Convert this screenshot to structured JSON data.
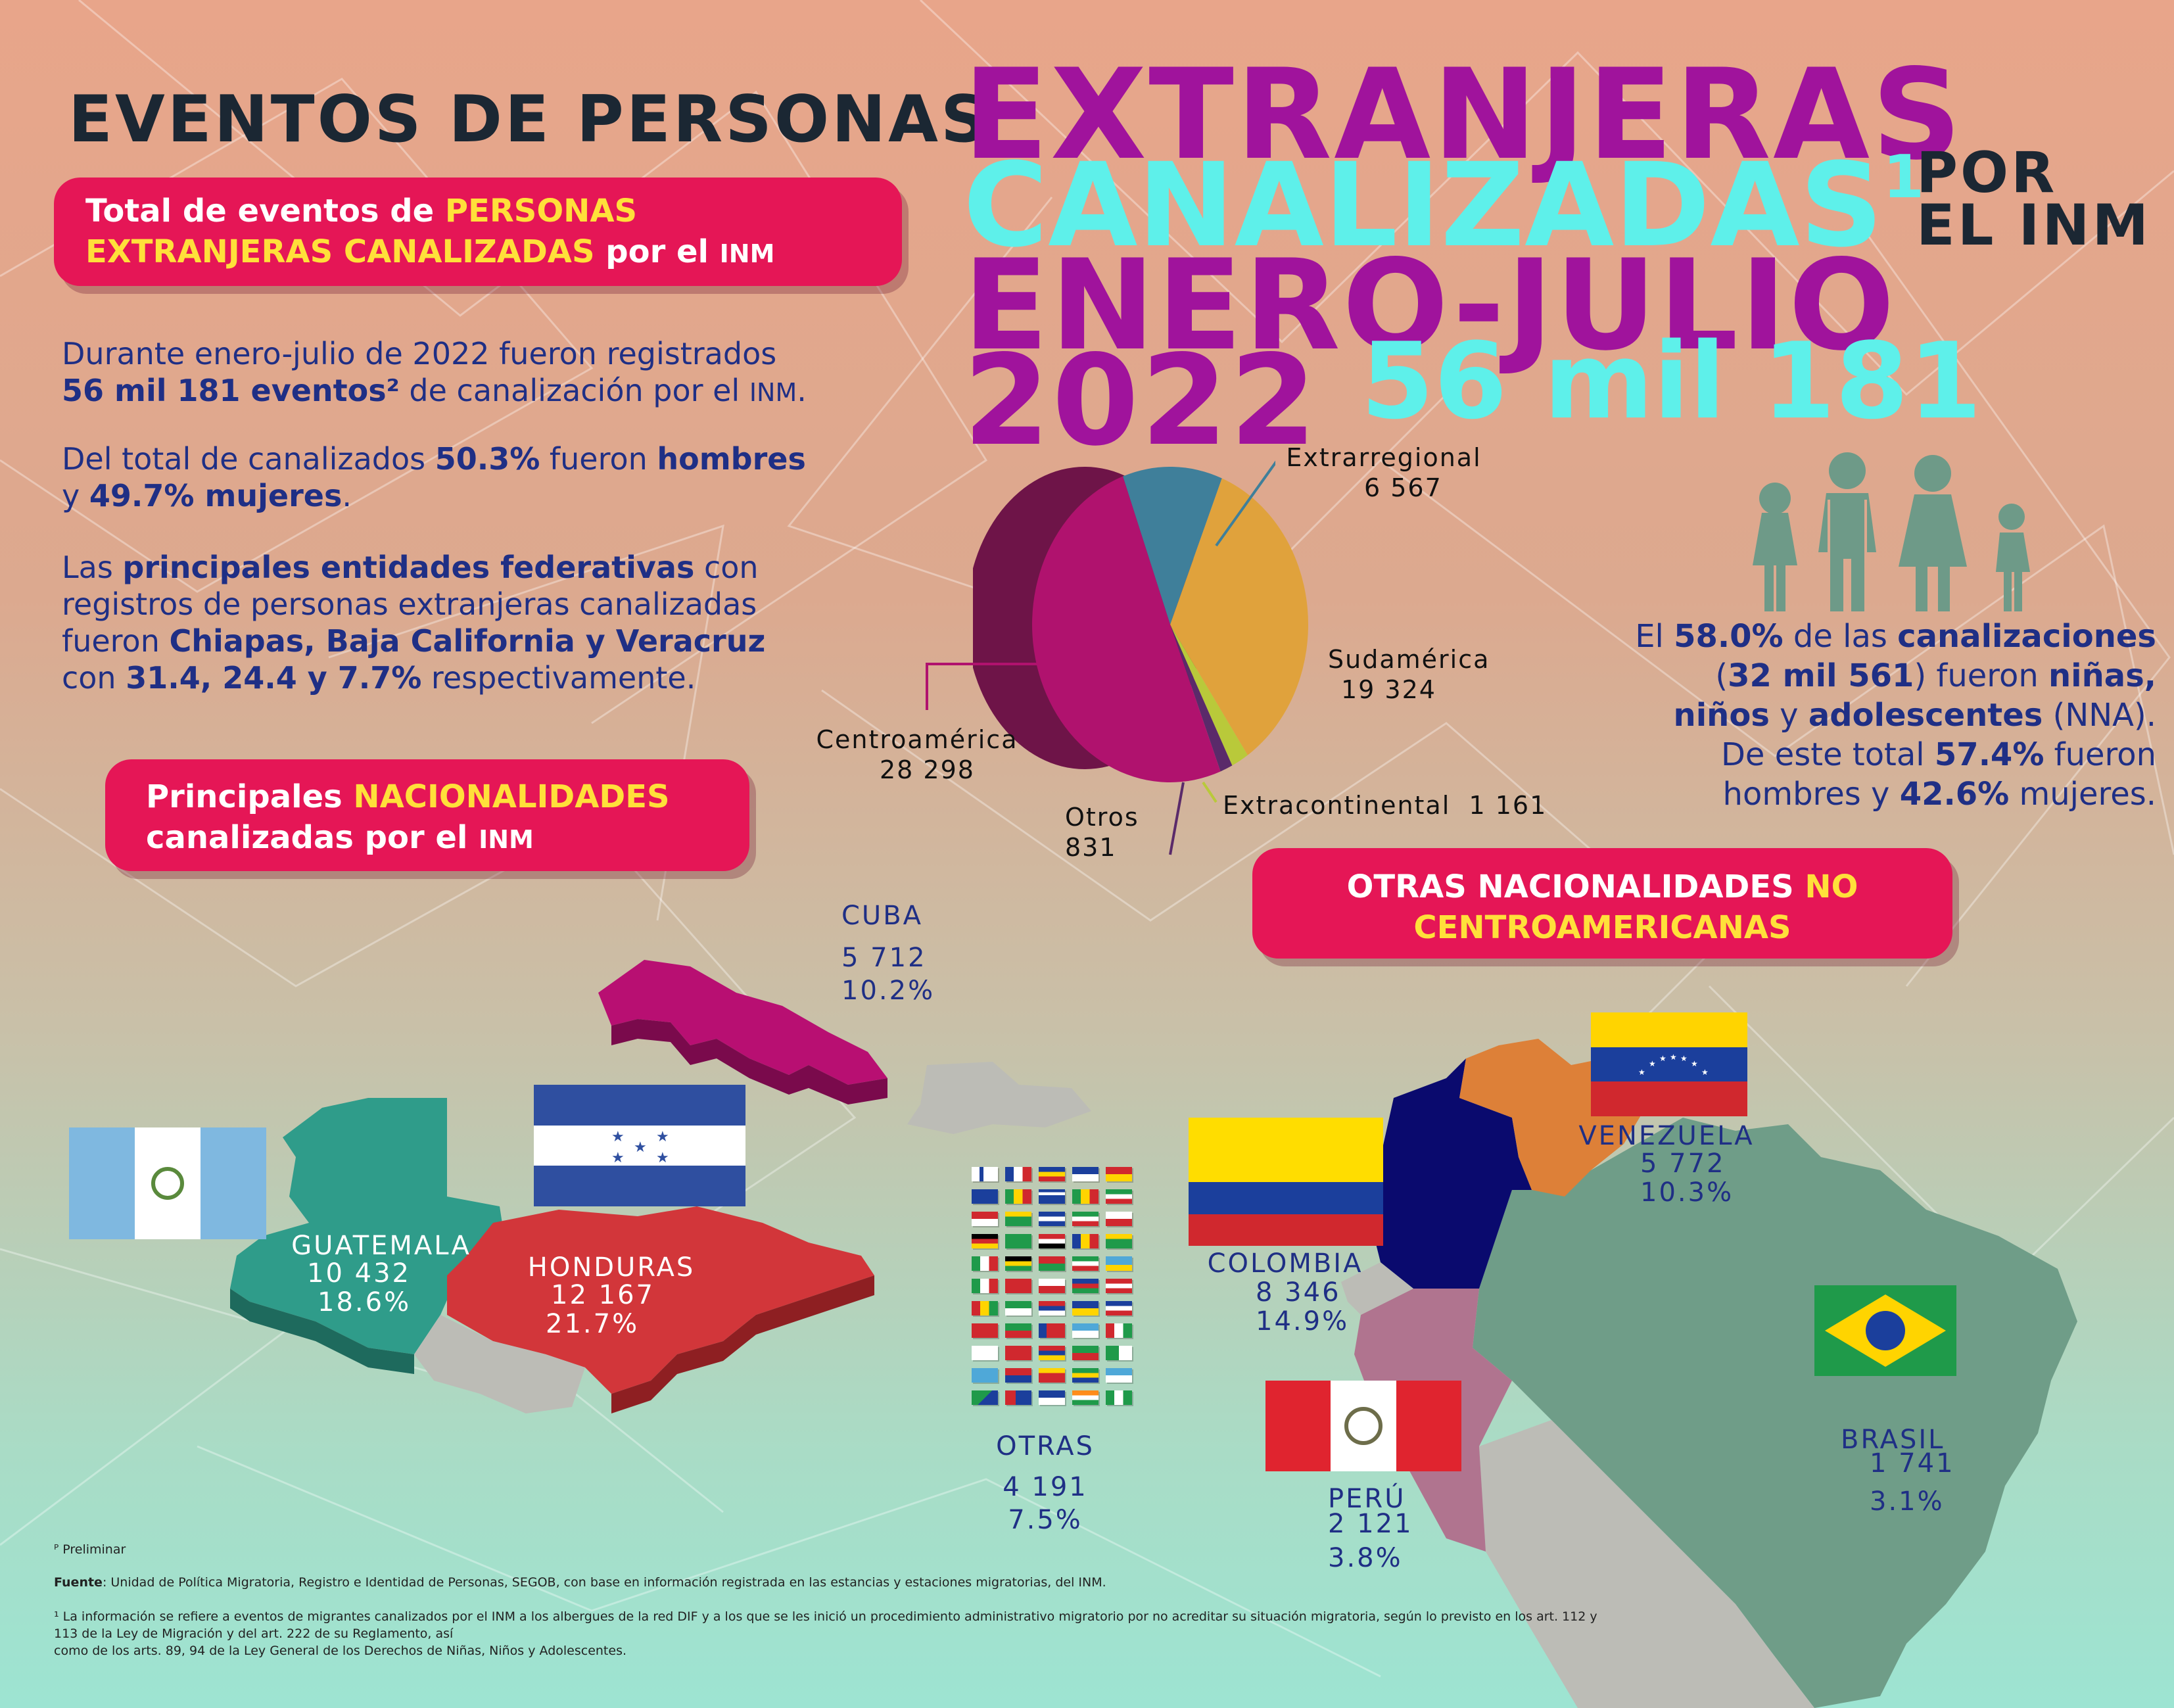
{
  "title": {
    "line1": "EVENTOS DE PERSONAS",
    "extranjeras": "EXTRANJERAS",
    "canalizadas": "CANALIZADAS",
    "superscript": "1",
    "por": "POR",
    "el_inm": "EL INM",
    "periodo": "ENERO-JULIO",
    "anio": "2022",
    "total": "56 mil 181"
  },
  "boxes": {
    "total": {
      "p1": "Total de eventos de ",
      "p2": "PERSONAS",
      "p3": "EXTRANJERAS CANALIZADAS",
      "p4": " por el ",
      "p5": "INM"
    },
    "nacionalidades": {
      "p1": "Principales ",
      "p2": "NACIONALIDADES",
      "p3": "canalizadas por el ",
      "p4": "INM"
    },
    "otras": {
      "p1": "OTRAS NACIONALIDADES ",
      "p2": "NO",
      "p3": "CENTROAMERICANAS"
    }
  },
  "intro": {
    "p1_a": "Durante enero-julio de 2022 fueron registrados",
    "p1_b": "56 mil 181 eventos²",
    "p1_c": " de canalización por el ",
    "p1_d": "INM",
    "p1_e": ".",
    "p2_a": "Del total de canalizados ",
    "p2_b": "50.3%",
    "p2_c": " fueron ",
    "p2_d": "hombres",
    "p2_e": "y ",
    "p2_f": "49.7% mujeres",
    "p2_g": ".",
    "p3_a": "Las ",
    "p3_b": "principales entidades federativas",
    "p3_c": " con",
    "p3_d": "registros de personas extranjeras canalizadas",
    "p3_e": "fueron ",
    "p3_f": "Chiapas, Baja California y Veracruz",
    "p3_g": "con ",
    "p3_h": "31.4, 24.4 y 7.7%",
    "p3_i": " respectivamente."
  },
  "nna": {
    "a": "El ",
    "b": "58.0%",
    "c": " de las ",
    "d": "canalizaciones",
    "e": "(",
    "f": "32 mil 561",
    "g": ") fueron ",
    "h": "niñas,",
    "i": "niños",
    "j": " y ",
    "k": "adolescentes",
    "l": " (NNA).",
    "m": "De este total ",
    "n": "57.4%",
    "o": " fueron",
    "p": "hombres y ",
    "q": "42.6%",
    "r": " mujeres."
  },
  "chart_data": {
    "type": "pie",
    "slices": [
      {
        "name": "Centroamérica",
        "value": 28298,
        "value_label": "28 298",
        "color": "#b0126e"
      },
      {
        "name": "Sudamérica",
        "value": 19324,
        "value_label": "19 324",
        "color": "#e0a23c"
      },
      {
        "name": "Extrarregional",
        "value": 6567,
        "value_label": "6 567",
        "color": "#3f7f9a"
      },
      {
        "name": "Extracontinental",
        "value": 1161,
        "value_label": "1 161",
        "color": "#b9c93a"
      },
      {
        "name": "Otros",
        "value": 831,
        "value_label": "831",
        "color": "#5a2a6a"
      }
    ]
  },
  "nationalities": {
    "cuba": {
      "name": "CUBA",
      "value": "5 712",
      "pct": "10.2%"
    },
    "guatemala": {
      "name": "GUATEMALA",
      "value": "10 432",
      "pct": "18.6%"
    },
    "honduras": {
      "name": "HONDURAS",
      "value": "12 167",
      "pct": "21.7%"
    },
    "otras": {
      "name": "OTRAS",
      "value": "4 191",
      "pct": "7.5%"
    },
    "colombia": {
      "name": "COLOMBIA",
      "value": "8 346",
      "pct": "14.9%"
    },
    "venezuela": {
      "name": "VENEZUELA",
      "value": "5 772",
      "pct": "10.3%"
    },
    "peru": {
      "name": "PERÚ",
      "value": "2 121",
      "pct": "3.8%"
    },
    "brasil": {
      "name": "BRASIL",
      "value": "1 741",
      "pct": "3.1%"
    }
  },
  "notes": {
    "preliminar": "ᴾ Preliminar",
    "fuente_label": "Fuente",
    "fuente_text": ": Unidad de Política Migratoria, Registro e Identidad de Personas, SEGOB, con base en información registrada en las estancias y estaciones migratorias, del INM.",
    "nota1": "¹ La información se refiere a eventos de migrantes canalizados por el INM a los albergues de la red DIF y a los que se les inició un procedimiento administrativo migratorio por no acreditar su situación migratoria, según lo previsto en los art. 112 y 113 de la Ley de Migración y del art. 222 de su Reglamento, así",
    "nota2": "como de los arts. 89, 94 de la Ley General de los Derechos de Niñas, Niños y Adolescentes."
  },
  "colors": {
    "magenta": "#a0139c",
    "cyan": "#5ef0ea",
    "pill": "#e51656",
    "navy": "#1f2f85",
    "family_icon": "#6e9a88",
    "guatemala_map": "#2f9c8a",
    "honduras_map": "#d2363a",
    "cuba_map": "#b80f72",
    "colombia_map": "#0a0a6e",
    "venezuela_map": "#dd8038",
    "peru_map": "#b0748f",
    "brasil_map": "#6f9d88",
    "grey_map": "#bcbcb6"
  },
  "icons": [
    "family-icon",
    "guatemala-flag-icon",
    "honduras-flag-icon",
    "colombia-flag-icon",
    "venezuela-flag-icon",
    "peru-flag-icon",
    "brasil-flag-icon",
    "flags-collage"
  ]
}
